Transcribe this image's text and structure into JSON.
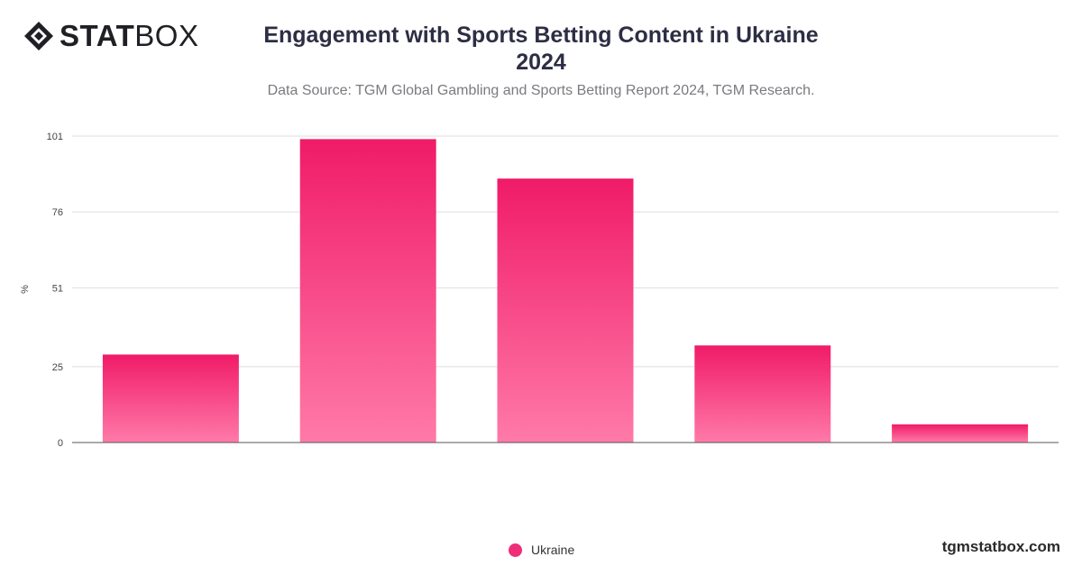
{
  "brand": {
    "logo_bold": "STAT",
    "logo_light": "BOX",
    "url": "tgmstatbox.com"
  },
  "header": {
    "title_line1": "Engagement with Sports Betting Content in Ukraine",
    "title_line2": "2024",
    "subtitle": "Data Source: TGM Global Gambling and Sports Betting Report 2024, TGM Research."
  },
  "colors": {
    "bar_top": "#f01b68",
    "bar_bottom": "#ff7aa8",
    "legend_dot": "#ef2d78",
    "grid": "#dedede",
    "axis": "#555555"
  },
  "chart_data": {
    "type": "bar",
    "ylabel": "%",
    "xlabel": "",
    "ylim": [
      0,
      101
    ],
    "yticks": [
      0,
      25,
      51,
      76,
      101
    ],
    "categories": [
      "",
      "",
      "",
      "",
      ""
    ],
    "series": [
      {
        "name": "Ukraine",
        "values": [
          29,
          100,
          87,
          32,
          6
        ]
      }
    ],
    "legend_position": "bottom-center",
    "grid": true
  }
}
